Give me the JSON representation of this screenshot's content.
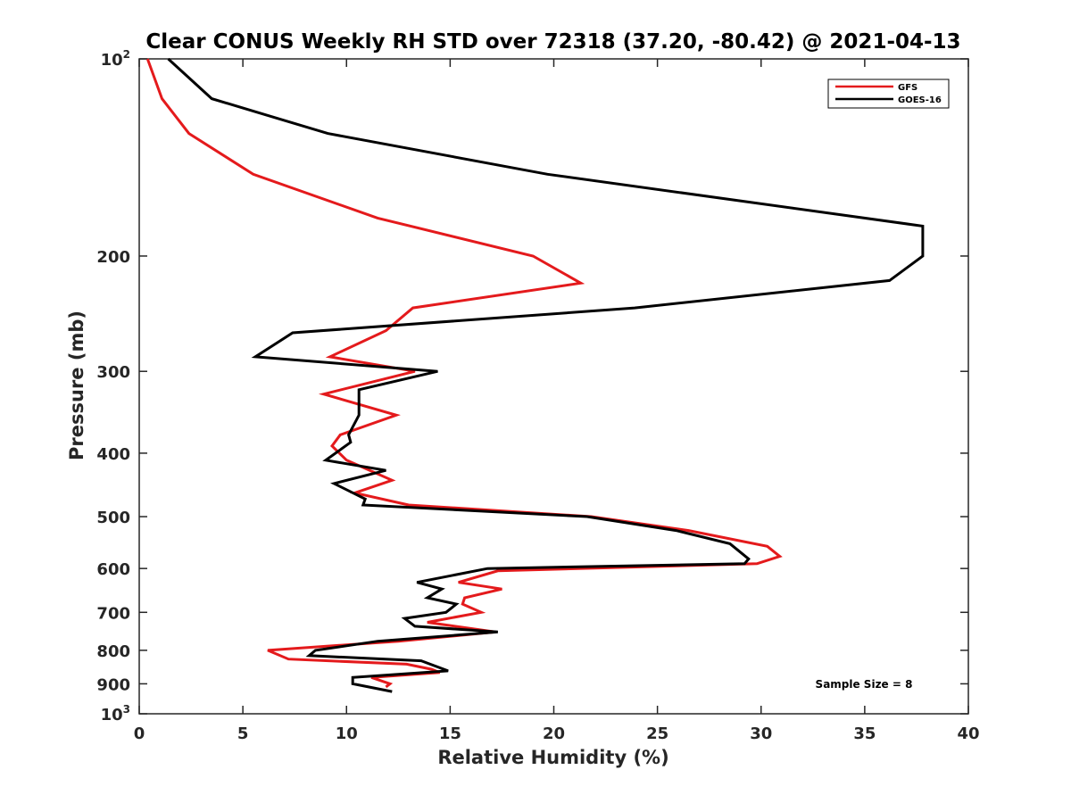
{
  "chart_data": {
    "type": "line",
    "title": "Clear CONUS Weekly RH STD over 72318 (37.20, -80.42) @ 2021-04-13",
    "xlabel": "Relative Humidity (%)",
    "ylabel": "Pressure (mb)",
    "xlim": [
      0,
      40
    ],
    "ylim": [
      100,
      1000
    ],
    "y_scale": "log",
    "y_reversed": true,
    "x_ticks": [
      0,
      5,
      10,
      15,
      20,
      25,
      30,
      35,
      40
    ],
    "y_ticks": [
      {
        "value": 100,
        "label": "10",
        "sup": "2"
      },
      {
        "value": 200,
        "label": "200",
        "sup": ""
      },
      {
        "value": 300,
        "label": "300",
        "sup": ""
      },
      {
        "value": 400,
        "label": "400",
        "sup": ""
      },
      {
        "value": 500,
        "label": "500",
        "sup": ""
      },
      {
        "value": 600,
        "label": "600",
        "sup": ""
      },
      {
        "value": 700,
        "label": "700",
        "sup": ""
      },
      {
        "value": 800,
        "label": "800",
        "sup": ""
      },
      {
        "value": 900,
        "label": "900",
        "sup": ""
      },
      {
        "value": 1000,
        "label": "10",
        "sup": "3"
      }
    ],
    "grid": false,
    "legend_position": "top-right",
    "series": [
      {
        "name": "GFS",
        "color": "#e41a1c",
        "points": [
          {
            "x": 0.4,
            "p": 100
          },
          {
            "x": 1.1,
            "p": 115
          },
          {
            "x": 2.4,
            "p": 130
          },
          {
            "x": 5.5,
            "p": 150
          },
          {
            "x": 11.5,
            "p": 175
          },
          {
            "x": 19.0,
            "p": 200
          },
          {
            "x": 21.3,
            "p": 220
          },
          {
            "x": 13.2,
            "p": 240
          },
          {
            "x": 11.9,
            "p": 260
          },
          {
            "x": 9.2,
            "p": 285
          },
          {
            "x": 13.3,
            "p": 300
          },
          {
            "x": 8.9,
            "p": 325
          },
          {
            "x": 12.4,
            "p": 350
          },
          {
            "x": 9.7,
            "p": 375
          },
          {
            "x": 9.3,
            "p": 390
          },
          {
            "x": 10.0,
            "p": 410
          },
          {
            "x": 12.2,
            "p": 440
          },
          {
            "x": 10.4,
            "p": 460
          },
          {
            "x": 13.0,
            "p": 480
          },
          {
            "x": 21.8,
            "p": 500
          },
          {
            "x": 26.5,
            "p": 525
          },
          {
            "x": 30.3,
            "p": 555
          },
          {
            "x": 30.9,
            "p": 575
          },
          {
            "x": 29.8,
            "p": 590
          },
          {
            "x": 17.3,
            "p": 605
          },
          {
            "x": 15.4,
            "p": 630
          },
          {
            "x": 17.5,
            "p": 645
          },
          {
            "x": 15.7,
            "p": 665
          },
          {
            "x": 15.6,
            "p": 680
          },
          {
            "x": 16.5,
            "p": 700
          },
          {
            "x": 13.9,
            "p": 725
          },
          {
            "x": 17.2,
            "p": 750
          },
          {
            "x": 12.5,
            "p": 775
          },
          {
            "x": 6.2,
            "p": 800
          },
          {
            "x": 7.2,
            "p": 825
          },
          {
            "x": 12.9,
            "p": 840
          },
          {
            "x": 14.1,
            "p": 855
          },
          {
            "x": 14.5,
            "p": 865
          },
          {
            "x": 11.2,
            "p": 880
          },
          {
            "x": 12.1,
            "p": 900
          },
          {
            "x": 11.9,
            "p": 910
          }
        ]
      },
      {
        "name": "GOES-16",
        "color": "#000000",
        "points": [
          {
            "x": 1.4,
            "p": 100
          },
          {
            "x": 3.5,
            "p": 115
          },
          {
            "x": 9.1,
            "p": 130
          },
          {
            "x": 19.7,
            "p": 150
          },
          {
            "x": 37.8,
            "p": 180
          },
          {
            "x": 37.8,
            "p": 200
          },
          {
            "x": 36.2,
            "p": 218
          },
          {
            "x": 23.9,
            "p": 240
          },
          {
            "x": 7.4,
            "p": 262
          },
          {
            "x": 5.6,
            "p": 285
          },
          {
            "x": 14.4,
            "p": 300
          },
          {
            "x": 10.6,
            "p": 320
          },
          {
            "x": 10.6,
            "p": 350
          },
          {
            "x": 10.1,
            "p": 375
          },
          {
            "x": 10.2,
            "p": 385
          },
          {
            "x": 9.0,
            "p": 410
          },
          {
            "x": 11.9,
            "p": 425
          },
          {
            "x": 9.4,
            "p": 445
          },
          {
            "x": 10.9,
            "p": 470
          },
          {
            "x": 10.8,
            "p": 480
          },
          {
            "x": 21.6,
            "p": 500
          },
          {
            "x": 25.9,
            "p": 525
          },
          {
            "x": 28.5,
            "p": 550
          },
          {
            "x": 29.4,
            "p": 580
          },
          {
            "x": 29.2,
            "p": 590
          },
          {
            "x": 16.8,
            "p": 600
          },
          {
            "x": 13.4,
            "p": 630
          },
          {
            "x": 14.6,
            "p": 645
          },
          {
            "x": 13.9,
            "p": 665
          },
          {
            "x": 15.3,
            "p": 680
          },
          {
            "x": 14.8,
            "p": 700
          },
          {
            "x": 12.8,
            "p": 715
          },
          {
            "x": 13.3,
            "p": 735
          },
          {
            "x": 17.3,
            "p": 750
          },
          {
            "x": 11.5,
            "p": 775
          },
          {
            "x": 8.5,
            "p": 800
          },
          {
            "x": 8.2,
            "p": 815
          },
          {
            "x": 13.6,
            "p": 830
          },
          {
            "x": 14.9,
            "p": 860
          },
          {
            "x": 10.3,
            "p": 880
          },
          {
            "x": 10.3,
            "p": 900
          },
          {
            "x": 12.2,
            "p": 925
          }
        ]
      }
    ],
    "annotation": "Sample Size = 8"
  }
}
